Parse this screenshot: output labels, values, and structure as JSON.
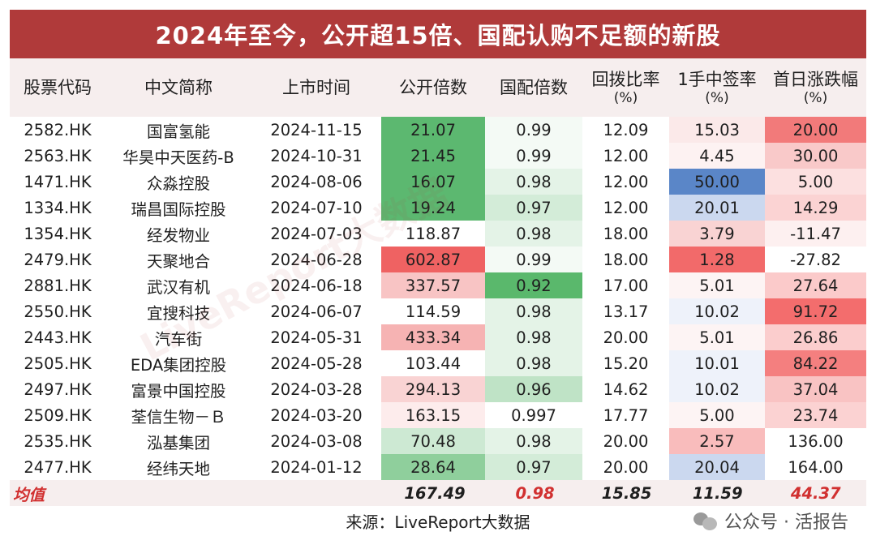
{
  "title": "2024年至今，公开超15倍、国配认购不足额的新股",
  "watermark_diag": "LiveReport大数据",
  "headers": [
    {
      "main": "股票代码",
      "sub": ""
    },
    {
      "main": "中文简称",
      "sub": ""
    },
    {
      "main": "上市时间",
      "sub": ""
    },
    {
      "main": "公开倍数",
      "sub": ""
    },
    {
      "main": "国配倍数",
      "sub": ""
    },
    {
      "main": "回拨比率",
      "sub": "(%)"
    },
    {
      "main": "1手中签率",
      "sub": "(%)"
    },
    {
      "main": "首日涨跌幅",
      "sub": "(%)"
    }
  ],
  "rows": [
    [
      "2582.HK",
      "国富氢能",
      "2024-11-15",
      "21.07",
      "0.99",
      "12.09",
      "15.03",
      "20.00"
    ],
    [
      "2563.HK",
      "华昊中天医药-B",
      "2024-10-31",
      "21.45",
      "0.99",
      "12.00",
      "4.45",
      "30.00"
    ],
    [
      "1471.HK",
      "众淼控股",
      "2024-08-06",
      "16.07",
      "0.98",
      "12.00",
      "50.00",
      "5.00"
    ],
    [
      "1334.HK",
      "瑞昌国际控股",
      "2024-07-10",
      "19.24",
      "0.97",
      "12.00",
      "20.01",
      "14.29"
    ],
    [
      "1354.HK",
      "经发物业",
      "2024-07-03",
      "118.87",
      "0.98",
      "18.00",
      "3.79",
      "-11.47"
    ],
    [
      "2479.HK",
      "天聚地合",
      "2024-06-28",
      "602.87",
      "0.99",
      "18.00",
      "1.28",
      "-27.82"
    ],
    [
      "2881.HK",
      "武汉有机",
      "2024-06-18",
      "337.57",
      "0.92",
      "17.00",
      "5.01",
      "27.64"
    ],
    [
      "2550.HK",
      "宜搜科技",
      "2024-06-07",
      "114.59",
      "0.98",
      "13.17",
      "10.02",
      "91.72"
    ],
    [
      "2443.HK",
      "汽车街",
      "2024-05-31",
      "433.34",
      "0.98",
      "20.00",
      "5.01",
      "26.86"
    ],
    [
      "2505.HK",
      "EDA集团控股",
      "2024-05-28",
      "103.44",
      "0.98",
      "15.20",
      "10.01",
      "84.22"
    ],
    [
      "2497.HK",
      "富景中国控股",
      "2024-03-28",
      "294.13",
      "0.96",
      "14.62",
      "10.02",
      "37.04"
    ],
    [
      "2509.HK",
      "荃信生物－Ｂ",
      "2024-03-20",
      "163.15",
      "0.997",
      "17.77",
      "5.00",
      "23.74"
    ],
    [
      "2535.HK",
      "泓基集团",
      "2024-03-08",
      "70.48",
      "0.98",
      "20.00",
      "2.57",
      "136.00"
    ],
    [
      "2477.HK",
      "经纬天地",
      "2024-01-12",
      "28.64",
      "0.97",
      "20.00",
      "20.04",
      "164.00"
    ]
  ],
  "cell_colors": [
    [
      "#ffffff",
      "#ffffff",
      "#ffffff",
      "#5cb870",
      "#f4faf5",
      "#ffffff",
      "#fbe9e9",
      "#f27a7a"
    ],
    [
      "#ffffff",
      "#ffffff",
      "#ffffff",
      "#5cb870",
      "#f4faf5",
      "#ffffff",
      "#fdf2f2",
      "#f9c9c9"
    ],
    [
      "#ffffff",
      "#ffffff",
      "#ffffff",
      "#5cb870",
      "#e4f3e7",
      "#ffffff",
      "#5a86c8",
      "#fce0e0"
    ],
    [
      "#ffffff",
      "#ffffff",
      "#ffffff",
      "#5cb870",
      "#d3ecd8",
      "#ffffff",
      "#cbd8ef",
      "#fbd3d3"
    ],
    [
      "#ffffff",
      "#ffffff",
      "#ffffff",
      "#ffffff",
      "#e4f3e7",
      "#ffffff",
      "#f9d3d3",
      "#fdf0f0"
    ],
    [
      "#ffffff",
      "#ffffff",
      "#ffffff",
      "#ef6262",
      "#f4faf5",
      "#ffffff",
      "#f26a6a",
      "#ffffff"
    ],
    [
      "#ffffff",
      "#ffffff",
      "#ffffff",
      "#f8c4c4",
      "#5ab86c",
      "#ffffff",
      "#fdf4f4",
      "#fbcaca"
    ],
    [
      "#ffffff",
      "#ffffff",
      "#ffffff",
      "#ffffff",
      "#e4f3e7",
      "#ffffff",
      "#eef2fa",
      "#f36d6d"
    ],
    [
      "#ffffff",
      "#ffffff",
      "#ffffff",
      "#f6b3b3",
      "#e4f3e7",
      "#ffffff",
      "#fdf4f4",
      "#fbcdcd"
    ],
    [
      "#ffffff",
      "#ffffff",
      "#ffffff",
      "#ffffff",
      "#e4f3e7",
      "#ffffff",
      "#eef2fa",
      "#f47f7f"
    ],
    [
      "#ffffff",
      "#ffffff",
      "#ffffff",
      "#f9d3d3",
      "#bfe3c6",
      "#ffffff",
      "#eef2fa",
      "#f9c3c3"
    ],
    [
      "#ffffff",
      "#ffffff",
      "#ffffff",
      "#fdecec",
      "#ffffff",
      "#ffffff",
      "#fdf4f4",
      "#fbd2d2"
    ],
    [
      "#ffffff",
      "#ffffff",
      "#ffffff",
      "#cde9d3",
      "#e4f3e7",
      "#ffffff",
      "#f9bcbc",
      "#ffffff"
    ],
    [
      "#ffffff",
      "#ffffff",
      "#ffffff",
      "#8fcf9c",
      "#d3ecd8",
      "#ffffff",
      "#cbd8ef",
      "#ffffff"
    ]
  ],
  "average": {
    "label": "均值",
    "values": [
      "",
      "",
      "",
      "167.49",
      "0.98",
      "15.85",
      "11.59",
      "44.37"
    ],
    "red_cols": [
      4,
      7
    ]
  },
  "source": "来源：LiveReport大数据",
  "wechat_mark": "公众号 · 活报告",
  "colors": {
    "title_bg": "#b03a3a",
    "header_bg": "#f6eeee",
    "accent_red": "#d13030"
  }
}
